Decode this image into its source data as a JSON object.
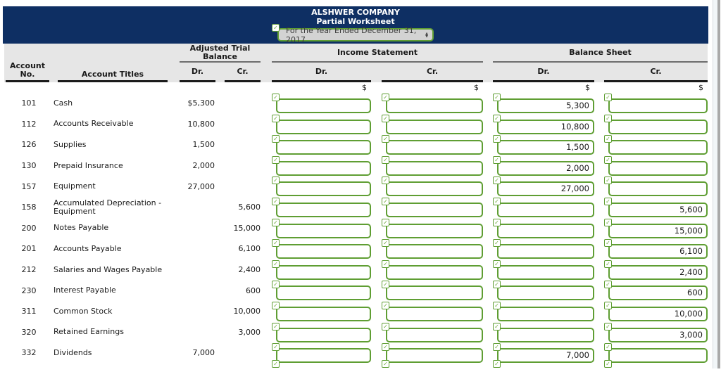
{
  "colors": {
    "header_navy": "#0e2f63",
    "accent_green": "#5f9e33",
    "head_band_gray": "#e6e6e6"
  },
  "header": {
    "company": "ALSHWER COMPANY",
    "subtitle": "Partial Worksheet",
    "period": "For the Year Ended December 31, 2017"
  },
  "table": {
    "account_no_label": "Account No.",
    "account_titles_label": "Account Titles",
    "groups": {
      "adjusted_trial_balance": "Adjusted Trial Balance",
      "income_statement": "Income Statement",
      "balance_sheet": "Balance Sheet"
    },
    "dr_label": "Dr.",
    "cr_label": "Cr.",
    "currency": "$",
    "checkbox_glyph": "✓"
  },
  "rows": [
    {
      "no": "101",
      "title": "Cash",
      "atb_dr": "$5,300",
      "atb_cr": "",
      "is_dr": "",
      "is_cr": "",
      "bs_dr": "5,300",
      "bs_cr": ""
    },
    {
      "no": "112",
      "title": "Accounts Receivable",
      "atb_dr": "10,800",
      "atb_cr": "",
      "is_dr": "",
      "is_cr": "",
      "bs_dr": "10,800",
      "bs_cr": ""
    },
    {
      "no": "126",
      "title": "Supplies",
      "atb_dr": "1,500",
      "atb_cr": "",
      "is_dr": "",
      "is_cr": "",
      "bs_dr": "1,500",
      "bs_cr": ""
    },
    {
      "no": "130",
      "title": "Prepaid Insurance",
      "atb_dr": "2,000",
      "atb_cr": "",
      "is_dr": "",
      "is_cr": "",
      "bs_dr": "2,000",
      "bs_cr": ""
    },
    {
      "no": "157",
      "title": "Equipment",
      "atb_dr": "27,000",
      "atb_cr": "",
      "is_dr": "",
      "is_cr": "",
      "bs_dr": "27,000",
      "bs_cr": ""
    },
    {
      "no": "158",
      "title": "Accumulated Depreciation - Equipment",
      "atb_dr": "",
      "atb_cr": "5,600",
      "is_dr": "",
      "is_cr": "",
      "bs_dr": "",
      "bs_cr": "5,600"
    },
    {
      "no": "200",
      "title": "Notes Payable",
      "atb_dr": "",
      "atb_cr": "15,000",
      "is_dr": "",
      "is_cr": "",
      "bs_dr": "",
      "bs_cr": "15,000"
    },
    {
      "no": "201",
      "title": "Accounts Payable",
      "atb_dr": "",
      "atb_cr": "6,100",
      "is_dr": "",
      "is_cr": "",
      "bs_dr": "",
      "bs_cr": "6,100"
    },
    {
      "no": "212",
      "title": "Salaries and Wages Payable",
      "atb_dr": "",
      "atb_cr": "2,400",
      "is_dr": "",
      "is_cr": "",
      "bs_dr": "",
      "bs_cr": "2,400"
    },
    {
      "no": "230",
      "title": "Interest Payable",
      "atb_dr": "",
      "atb_cr": "600",
      "is_dr": "",
      "is_cr": "",
      "bs_dr": "",
      "bs_cr": "600"
    },
    {
      "no": "311",
      "title": "Common Stock",
      "atb_dr": "",
      "atb_cr": "10,000",
      "is_dr": "",
      "is_cr": "",
      "bs_dr": "",
      "bs_cr": "10,000"
    },
    {
      "no": "320",
      "title": "Retained Earnings",
      "atb_dr": "",
      "atb_cr": "3,000",
      "is_dr": "",
      "is_cr": "",
      "bs_dr": "",
      "bs_cr": "3,000"
    },
    {
      "no": "332",
      "title": "Dividends",
      "atb_dr": "7,000",
      "atb_cr": "",
      "is_dr": "",
      "is_cr": "",
      "bs_dr": "7,000",
      "bs_cr": ""
    }
  ]
}
